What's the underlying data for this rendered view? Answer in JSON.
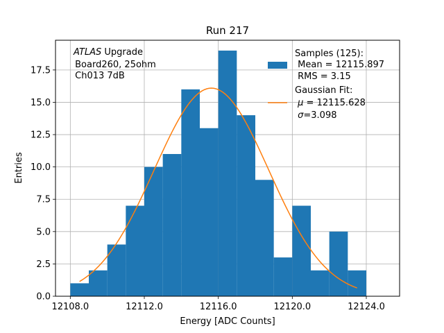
{
  "chart_data": {
    "type": "bar",
    "title": "Run 217",
    "xlabel": "Energy [ADC Counts]",
    "ylabel": "Entries",
    "xlim": [
      12107.2,
      12125.8
    ],
    "ylim": [
      0,
      19.8
    ],
    "grid": true,
    "legend_position": "top-right",
    "bin_width": 1.0,
    "bin_edges_start": 12108,
    "x_ticks": [
      12108.0,
      12112.0,
      12116.0,
      12120.0,
      12124.0
    ],
    "x_tick_labels": [
      "12108.0",
      "12112.0",
      "12116.0",
      "12120.0",
      "12124.0"
    ],
    "y_ticks": [
      0,
      2.5,
      5,
      7.5,
      10,
      12.5,
      15,
      17.5
    ],
    "y_tick_labels": [
      "0.0",
      "2.5",
      "5.0",
      "7.5",
      "10.0",
      "12.5",
      "15.0",
      "17.5"
    ],
    "series": [
      {
        "name": "Samples (125):",
        "kind": "histogram",
        "color": "#1f77b4",
        "bins": [
          12108,
          12109,
          12110,
          12111,
          12112,
          12113,
          12114,
          12115,
          12116,
          12117,
          12118,
          12119,
          12120,
          12121,
          12122,
          12123
        ],
        "values": [
          1,
          2,
          4,
          7,
          10,
          11,
          16,
          13,
          19,
          14,
          9,
          3,
          7,
          2,
          5,
          2
        ]
      },
      {
        "name": "Gaussian Fit:",
        "kind": "line",
        "color": "#ff7f0e",
        "mu": 12115.628,
        "sigma": 3.098,
        "amplitude": 125,
        "x_range": [
          12108.5,
          12123.5
        ]
      }
    ],
    "legend": {
      "samples_lines": [
        "Samples (125):",
        " Mean = 12115.897",
        " RMS = 3.15"
      ],
      "fit_line1": "Gaussian Fit:",
      "fit_mu_symbol": "μ",
      "fit_mu_value": " = 12115.628",
      "fit_sigma_symbol": "σ",
      "fit_sigma_value": "=3.098"
    },
    "annotation": {
      "italic": "ATLAS",
      "line1_rest": " Upgrade",
      "line2": " Board260, 25ohm",
      "line3": " Ch013 7dB"
    }
  }
}
